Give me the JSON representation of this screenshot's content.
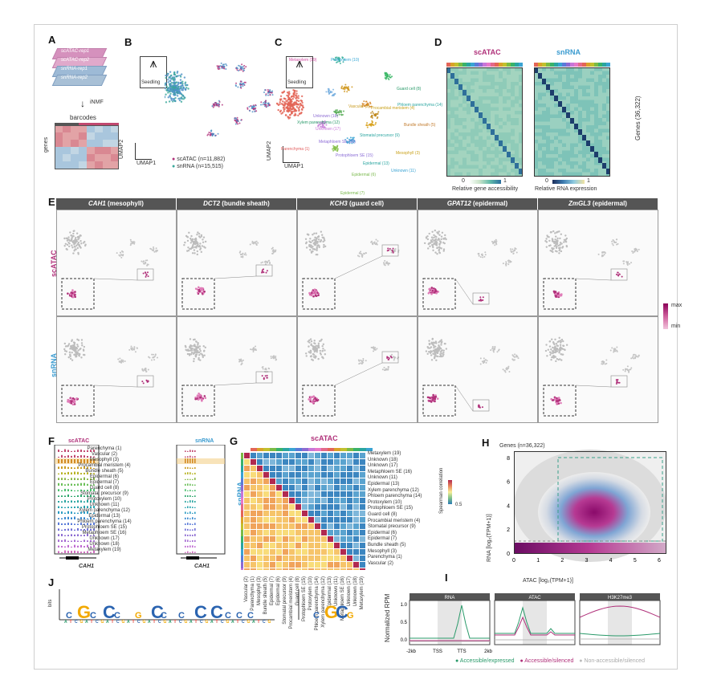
{
  "panels": {
    "a": "A",
    "b": "B",
    "c": "C",
    "d": "D",
    "e": "E",
    "f": "F",
    "g": "G",
    "h": "H",
    "i": "I",
    "j": "J"
  },
  "panelA": {
    "layers": [
      "scATAC-rep1",
      "scATAC-rep2",
      "snRNA-rep1",
      "snRNA-rep2"
    ],
    "method": "iNMF",
    "barcodes": "barcodes",
    "genes": "genes"
  },
  "panelB": {
    "seedling": "Seedling",
    "umap1": "UMAP1",
    "umap2": "UMAP2",
    "legend_atac": "scATAC (n=11,882)",
    "legend_rna": "snRNA (n=15,515)"
  },
  "panelC": {
    "seedling": "Seedling",
    "umap1": "UMAP1",
    "umap2": "UMAP2",
    "clusters": [
      "Metaxylem (19)",
      "Protoxylem (10)",
      "Guard cell (8)",
      "Vascular (2)",
      "Unknown (18)",
      "Phloem parenchyma (14)",
      "Xylem parenchyma (12)",
      "Procambial meristem (4)",
      "Bundle sheath (5)",
      "Unknown (17)",
      "Metaphloem SE (16)",
      "Stomatal precursor (9)",
      "Parenchyma (1)",
      "Protophloem SE (15)",
      "Mesophyll (3)",
      "Epidermal (13)",
      "Unknown (11)",
      "Epidermal (6)",
      "Epidermal (7)"
    ]
  },
  "panelD": {
    "atac": "scATAC",
    "rna": "snRNA",
    "genes": "Genes (36,322)",
    "scale_min": "0",
    "scale_max": "1",
    "atac_caption": "Relative gene accessibility",
    "rna_caption": "Relative RNA expression"
  },
  "panelE": {
    "columns": [
      {
        "gene": "CAH1",
        "cell": "(mesophyll)"
      },
      {
        "gene": "DCT2",
        "cell": "(bundle sheath)"
      },
      {
        "gene": "KCH3",
        "cell": "(guard cell)"
      },
      {
        "gene": "GPAT12",
        "cell": "(epidermal)"
      },
      {
        "gene": "ZmGL3",
        "cell": "(epidermal)"
      }
    ],
    "row_atac": "scATAC",
    "row_rna": "snRNA",
    "max": "max",
    "min": "min"
  },
  "panelF": {
    "atac": "scATAC",
    "rna": "snRNA",
    "gene": "CAH1",
    "tracks": [
      "Parenchyma (1)",
      "Vascular (2)",
      "Mesophyll (3)",
      "Procambial meristem (4)",
      "Bundle sheath (5)",
      "Epidermal (6)",
      "Epidermal (7)",
      "Guard cell (8)",
      "Stomatal precursor (9)",
      "Protoxylem (10)",
      "Unknown (11)",
      "Xylem parenchyma (12)",
      "Epidermal (13)",
      "Phloem parenchyma (14)",
      "Protophloem SE (15)",
      "Metaphloem SE (16)",
      "Unknown (17)",
      "Unknown (18)",
      "Metaxylem (19)"
    ]
  },
  "panelG": {
    "atac": "scATAC",
    "rna": "snRNA",
    "scale_label": "Spearman correlation",
    "scale_max": "0.5",
    "right_labels": [
      "Metaxylem (19)",
      "Unknown (18)",
      "Unknown (17)",
      "Metaphloem SE (16)",
      "Unknown (11)",
      "Epidermal (13)",
      "Xylem parenchyma (12)",
      "Phloem parenchyma (14)",
      "Protoxylem (10)",
      "Protophloem SE (15)",
      "Guard cell (8)",
      "Procambial meristem (4)",
      "Stomatal precursor (9)",
      "Epidermal (6)",
      "Epidermal (7)",
      "Bundle sheath (5)",
      "Mesophyll (3)",
      "Parenchyma (1)",
      "Vascular (2)"
    ]
  },
  "panelH": {
    "title": "Genes (n=36,322)",
    "xlabel": "ATAC [log₂(TPM+1)]",
    "ylabel": "RNA [log₂(TPM+1)]",
    "xticks": [
      "0",
      "1",
      "2",
      "3",
      "4",
      "5",
      "6"
    ],
    "yticks": [
      "0",
      "2",
      "4",
      "6",
      "8"
    ]
  },
  "panelI": {
    "ylabel": "Normalized RPM",
    "tracks": [
      "RNA",
      "ATAC",
      "H3K27me3"
    ],
    "xticks": [
      "-2kb",
      "TSS",
      "TTS",
      "2kb"
    ],
    "yticks": [
      "0.0",
      "0.5",
      "1.0"
    ],
    "legend": [
      "Accessible/expressed",
      "Accessible/silenced",
      "Non-accessible/silenced"
    ]
  },
  "panelJ": {
    "ylabel": "bits"
  },
  "colors": {
    "atac": "#b0317a",
    "rna": "#3a9bd0",
    "green": "#2a9a6a",
    "gray": "#c8c8c8"
  }
}
